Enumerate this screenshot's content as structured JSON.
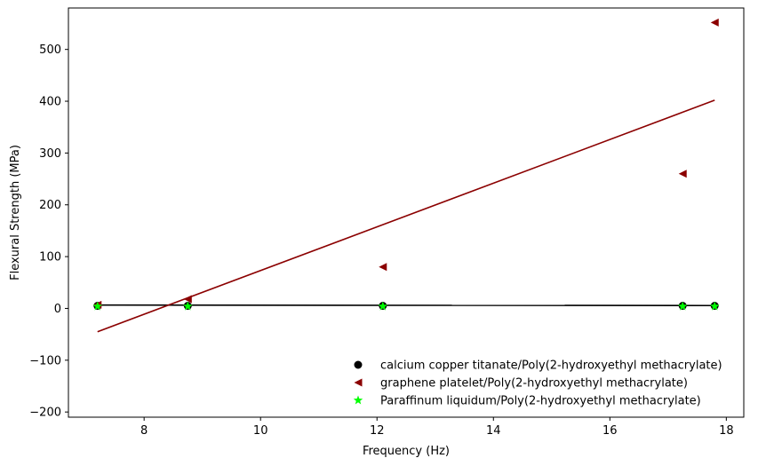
{
  "chart_data": {
    "type": "scatter",
    "title": "",
    "xlabel": "Frequency (Hz)",
    "ylabel": "Flexural Strength (MPa)",
    "xlim": [
      6.7,
      18.3
    ],
    "ylim": [
      -210,
      580
    ],
    "xticks": [
      8,
      10,
      12,
      14,
      16,
      18
    ],
    "yticks": [
      -200,
      -100,
      0,
      100,
      200,
      300,
      400,
      500
    ],
    "grid": false,
    "legend_position": "lower-right",
    "series": [
      {
        "name": "calcium copper titanate/Poly(2-hydroxyethyl methacrylate)",
        "marker": "circle",
        "color": "#000000",
        "x": [
          7.2,
          8.75,
          12.1,
          17.25,
          17.8
        ],
        "y": [
          5,
          5,
          5,
          5,
          5
        ],
        "trend_line": {
          "x": [
            7.2,
            17.8
          ],
          "y": [
            6.5,
            5.5
          ]
        }
      },
      {
        "name": "graphene platelet/Poly(2-hydroxyethyl methacrylate)",
        "marker": "triangle-left",
        "color": "#8b0000",
        "x": [
          7.2,
          8.75,
          12.1,
          17.25,
          17.8
        ],
        "y": [
          7,
          18,
          80,
          260,
          552
        ],
        "trend_line": {
          "x": [
            7.2,
            17.8
          ],
          "y": [
            -45,
            402
          ]
        }
      },
      {
        "name": "Paraffinum liquidum/Poly(2-hydroxyethyl methacrylate)",
        "marker": "star",
        "color": "#00ff00",
        "x": [
          7.2,
          8.75,
          12.1,
          17.25,
          17.8
        ],
        "y": [
          4,
          4,
          4,
          4,
          4
        ]
      }
    ]
  }
}
